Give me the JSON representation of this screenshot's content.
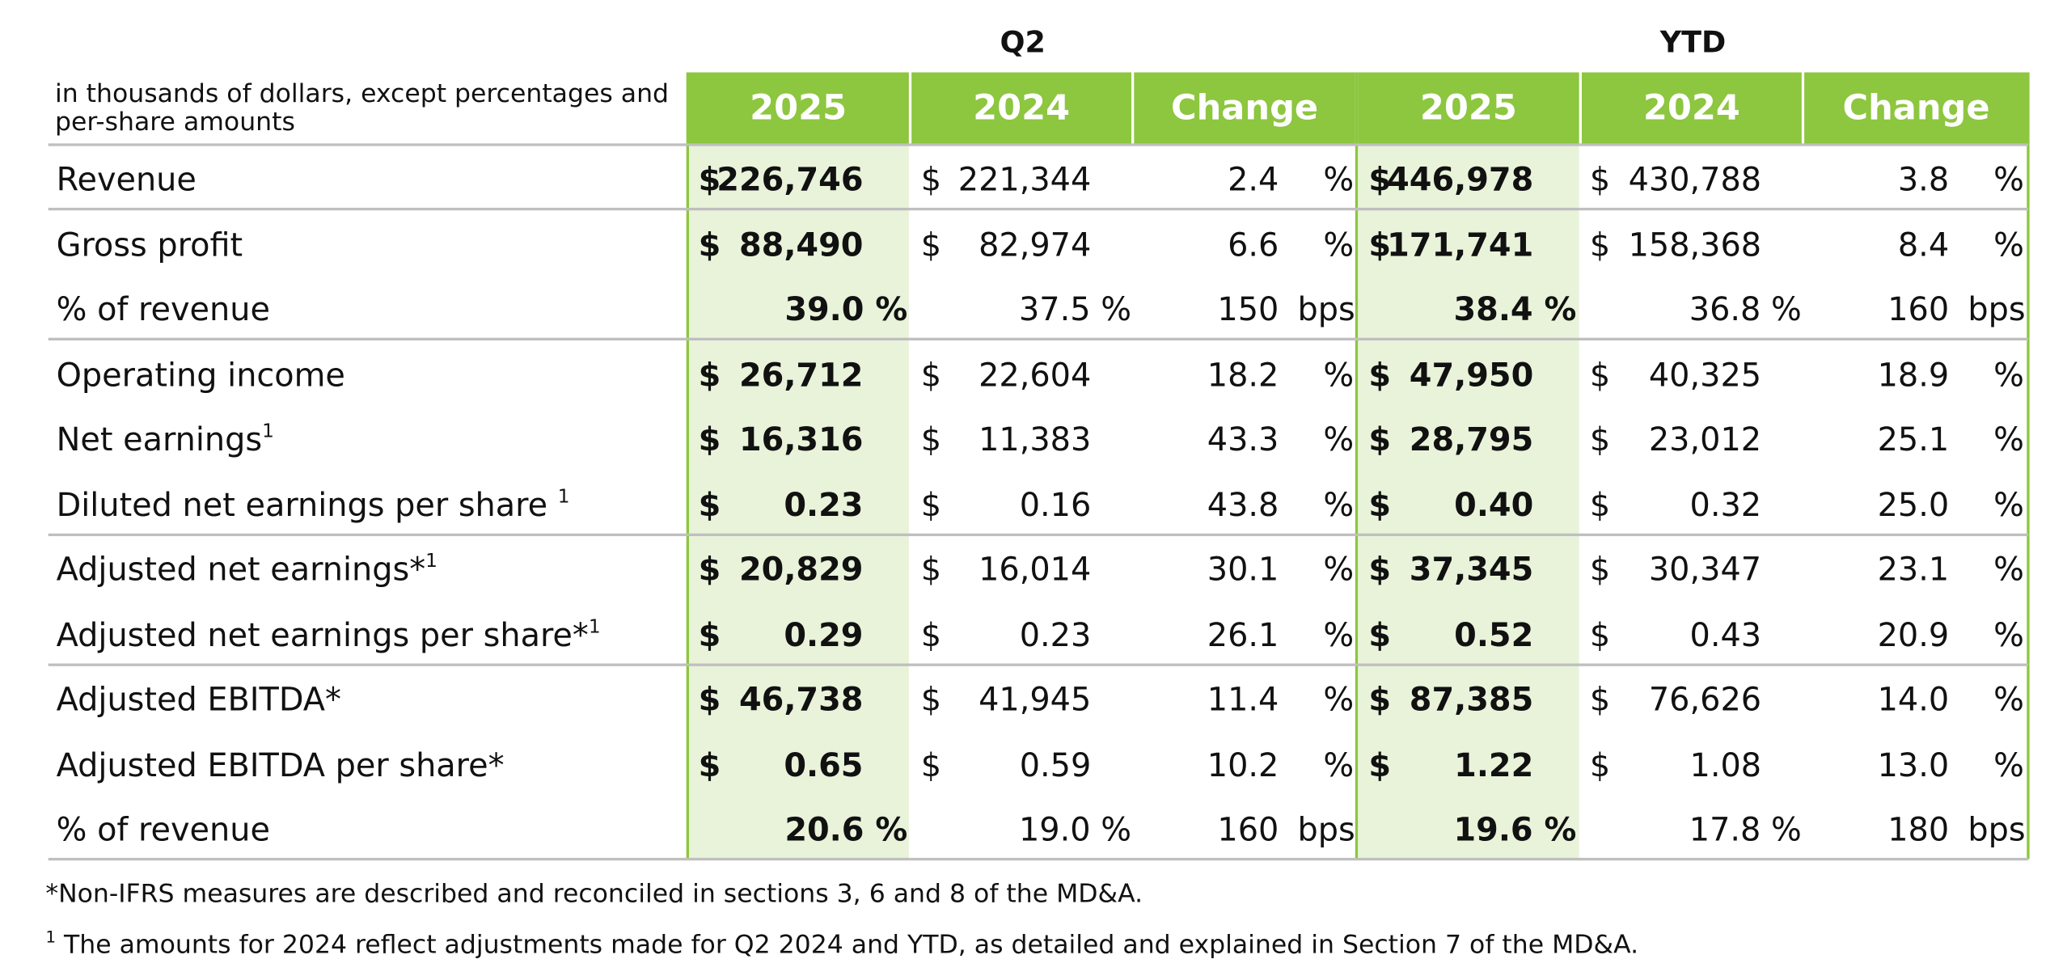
{
  "header": {
    "period_q2": "Q2",
    "period_ytd": "YTD",
    "caption": "in thousands of dollars, except percentages and per-share amounts",
    "columns": [
      "2025",
      "2024",
      "Change",
      "2025",
      "2024",
      "Change"
    ]
  },
  "rows": [
    {
      "label": "Revenue",
      "sup": "",
      "type": "money",
      "q2_2025": "226,746",
      "q2_2024": "221,344",
      "q2_change": "2.4",
      "q2_unit": "%",
      "ytd_2025": "446,978",
      "ytd_2024": "430,788",
      "ytd_change": "3.8",
      "ytd_unit": "%"
    },
    {
      "label": "Gross profit",
      "sup": "",
      "type": "money",
      "q2_2025": "88,490",
      "q2_2024": "82,974",
      "q2_change": "6.6",
      "q2_unit": "%",
      "ytd_2025": "171,741",
      "ytd_2024": "158,368",
      "ytd_change": "8.4",
      "ytd_unit": "%"
    },
    {
      "label": "% of revenue",
      "sup": "",
      "type": "pct",
      "q2_2025": "39.0 %",
      "q2_2024": "37.5 %",
      "q2_change": "150",
      "q2_unit": "bps",
      "ytd_2025": "38.4 %",
      "ytd_2024": "36.8 %",
      "ytd_change": "160",
      "ytd_unit": "bps"
    },
    {
      "label": "Operating income",
      "sup": "",
      "type": "money",
      "q2_2025": "26,712",
      "q2_2024": "22,604",
      "q2_change": "18.2",
      "q2_unit": "%",
      "ytd_2025": "47,950",
      "ytd_2024": "40,325",
      "ytd_change": "18.9",
      "ytd_unit": "%"
    },
    {
      "label": "Net earnings",
      "sup": "1",
      "type": "money",
      "q2_2025": "16,316",
      "q2_2024": "11,383",
      "q2_change": "43.3",
      "q2_unit": "%",
      "ytd_2025": "28,795",
      "ytd_2024": "23,012",
      "ytd_change": "25.1",
      "ytd_unit": "%"
    },
    {
      "label": "Diluted net earnings per share ",
      "sup": "1",
      "type": "money",
      "q2_2025": "0.23",
      "q2_2024": "0.16",
      "q2_change": "43.8",
      "q2_unit": "%",
      "ytd_2025": "0.40",
      "ytd_2024": "0.32",
      "ytd_change": "25.0",
      "ytd_unit": "%"
    },
    {
      "label": "Adjusted net earnings*",
      "sup": "1",
      "type": "money",
      "q2_2025": "20,829",
      "q2_2024": "16,014",
      "q2_change": "30.1",
      "q2_unit": "%",
      "ytd_2025": "37,345",
      "ytd_2024": "30,347",
      "ytd_change": "23.1",
      "ytd_unit": "%"
    },
    {
      "label": "Adjusted net earnings per share*",
      "sup": "1",
      "type": "money",
      "q2_2025": "0.29",
      "q2_2024": "0.23",
      "q2_change": "26.1",
      "q2_unit": "%",
      "ytd_2025": "0.52",
      "ytd_2024": "0.43",
      "ytd_change": "20.9",
      "ytd_unit": "%"
    },
    {
      "label": "Adjusted EBITDA*",
      "sup": "",
      "type": "money",
      "q2_2025": "46,738",
      "q2_2024": "41,945",
      "q2_change": "11.4",
      "q2_unit": "%",
      "ytd_2025": "87,385",
      "ytd_2024": "76,626",
      "ytd_change": "14.0",
      "ytd_unit": "%"
    },
    {
      "label": "Adjusted EBITDA per share*",
      "sup": "",
      "type": "money",
      "q2_2025": "0.65",
      "q2_2024": "0.59",
      "q2_change": "10.2",
      "q2_unit": "%",
      "ytd_2025": "1.22",
      "ytd_2024": "1.08",
      "ytd_change": "13.0",
      "ytd_unit": "%"
    },
    {
      "label": "% of revenue",
      "sup": "",
      "type": "pct",
      "q2_2025": "20.6 %",
      "q2_2024": "19.0 %",
      "q2_change": "160",
      "q2_unit": "bps",
      "ytd_2025": "19.6 %",
      "ytd_2024": "17.8 %",
      "ytd_change": "180",
      "ytd_unit": "bps"
    }
  ],
  "currency_symbol": "$",
  "footnotes": {
    "note1": "*Non-IFRS measures are described and reconciled in sections 3, 6 and 8 of the MD&A.",
    "note2_sup": "1",
    "note2": " The amounts for 2024 reflect adjustments made for Q2 2024 and YTD, as detailed and explained in Section 7 of the MD&A."
  },
  "colors": {
    "accent": "#8dc63f",
    "shade": "#e8f3da",
    "rule": "#bfbfbf"
  }
}
